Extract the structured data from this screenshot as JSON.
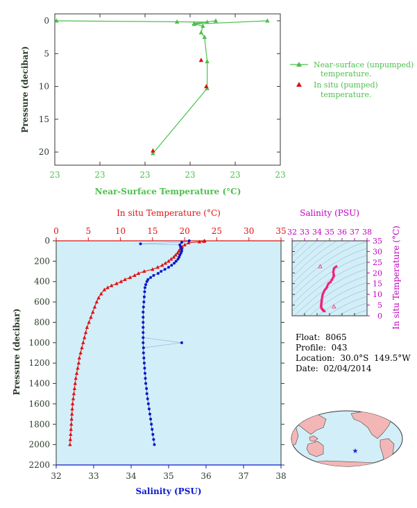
{
  "colors": {
    "nearsurface": "#4cbf4c",
    "insitu": "#dd1111",
    "salinity": "#0a18c8",
    "salinity_title": "#c000c0",
    "ts_points": "#ee2277",
    "axis_dark": "#2a3a2a",
    "panel_bg": "#d2eef8",
    "land": "#f3b6b6",
    "ocean": "#d2eef8"
  },
  "icons": {
    "float_marker": "star-icon"
  },
  "metadata": {
    "float": "Float:  8065",
    "profile": "Profile:  043",
    "location": "Location:  30.0°S  149.5°W",
    "date": "Date:  02/04/2014"
  },
  "chart_data": [
    {
      "type": "line",
      "name": "near-surface",
      "xlabel": "Near-Surface Temperature (°C)",
      "ylabel": "Pressure (decibar)",
      "x_tick_labels": [
        "23",
        "23",
        "23",
        "23",
        "23",
        "23"
      ],
      "y_tick_labels": [
        "0",
        "5",
        "10",
        "15",
        "20"
      ],
      "ylim": [
        0,
        22
      ],
      "y_reversed": true,
      "legend_placement": "right",
      "series": [
        {
          "name": "Near-surface (unpumped) temperature.",
          "marker": "triangle",
          "line": true,
          "points": [
            {
              "t": 22.96,
              "p": 0.0
            },
            {
              "t": 23.1,
              "p": 0.15
            },
            {
              "t": 23.135,
              "p": 0.2
            },
            {
              "t": 23.12,
              "p": 0.4
            },
            {
              "t": 23.12,
              "p": 0.5
            },
            {
              "t": 23.13,
              "p": 0.8
            },
            {
              "t": 23.128,
              "p": 1.8
            },
            {
              "t": 23.132,
              "p": 2.5
            },
            {
              "t": 23.135,
              "p": 6.2
            },
            {
              "t": 23.135,
              "p": 10.3
            },
            {
              "t": 23.072,
              "p": 20.2
            }
          ]
        },
        {
          "name": "Near-surface (unpumped) temperature.",
          "marker": "triangle",
          "line": true,
          "points": [
            {
              "t": 23.12,
              "p": 0.4
            },
            {
              "t": 23.145,
              "p": 0.0
            }
          ]
        },
        {
          "name": "Near-surface (unpumped) temperature.",
          "marker": "triangle",
          "line": true,
          "points": [
            {
              "t": 23.12,
              "p": 0.5
            },
            {
              "t": 23.205,
              "p": 0.0
            }
          ]
        },
        {
          "name": "In situ (pumped) temperature.",
          "marker": "triangle",
          "line": false,
          "points": [
            {
              "t": 23.128,
              "p": 6.0
            },
            {
              "t": 23.134,
              "p": 10.0
            },
            {
              "t": 23.072,
              "p": 19.8
            }
          ]
        }
      ]
    },
    {
      "type": "line",
      "name": "profile",
      "title_top": "In situ Temperature (°C)",
      "xlabel": "Salinity (PSU)",
      "ylabel": "Pressure (decibar)",
      "temp_xlim": [
        0,
        35
      ],
      "temp_ticks": [
        0,
        5,
        10,
        15,
        20,
        25,
        30,
        35
      ],
      "sal_xlim": [
        32,
        38
      ],
      "sal_ticks": [
        32,
        33,
        34,
        35,
        36,
        37,
        38
      ],
      "ylim": [
        0,
        2200
      ],
      "y_ticks": [
        0,
        200,
        400,
        600,
        800,
        1000,
        1200,
        1400,
        1600,
        1800,
        2000,
        2200
      ],
      "y_reversed": true,
      "temperature_series": {
        "name": "In situ Temperature",
        "points": [
          [
            23.1,
            0
          ],
          [
            23.0,
            5
          ],
          [
            22.3,
            10
          ],
          [
            20.6,
            20
          ],
          [
            20.0,
            40
          ],
          [
            19.6,
            60
          ],
          [
            19.3,
            80
          ],
          [
            19.1,
            100
          ],
          [
            18.9,
            120
          ],
          [
            18.6,
            140
          ],
          [
            18.3,
            160
          ],
          [
            17.9,
            180
          ],
          [
            17.5,
            200
          ],
          [
            17.0,
            220
          ],
          [
            16.5,
            240
          ],
          [
            15.8,
            260
          ],
          [
            15.0,
            280
          ],
          [
            13.7,
            300
          ],
          [
            12.8,
            320
          ],
          [
            12.2,
            340
          ],
          [
            11.5,
            360
          ],
          [
            10.7,
            380
          ],
          [
            10.1,
            400
          ],
          [
            9.4,
            420
          ],
          [
            8.6,
            440
          ],
          [
            8.0,
            460
          ],
          [
            7.5,
            480
          ],
          [
            7.0,
            520
          ],
          [
            6.6,
            560
          ],
          [
            6.3,
            600
          ],
          [
            6.0,
            650
          ],
          [
            5.7,
            700
          ],
          [
            5.4,
            750
          ],
          [
            5.1,
            800
          ],
          [
            4.8,
            850
          ],
          [
            4.6,
            900
          ],
          [
            4.4,
            950
          ],
          [
            4.2,
            1000
          ],
          [
            4.0,
            1050
          ],
          [
            3.8,
            1100
          ],
          [
            3.6,
            1150
          ],
          [
            3.5,
            1200
          ],
          [
            3.35,
            1250
          ],
          [
            3.2,
            1300
          ],
          [
            3.05,
            1350
          ],
          [
            2.95,
            1400
          ],
          [
            2.85,
            1450
          ],
          [
            2.75,
            1500
          ],
          [
            2.65,
            1550
          ],
          [
            2.55,
            1600
          ],
          [
            2.5,
            1650
          ],
          [
            2.45,
            1700
          ],
          [
            2.4,
            1750
          ],
          [
            2.35,
            1800
          ],
          [
            2.3,
            1850
          ],
          [
            2.25,
            1900
          ],
          [
            2.2,
            1950
          ],
          [
            2.15,
            2000
          ]
        ]
      },
      "salinity_series": {
        "name": "Salinity",
        "points": [
          [
            35.55,
            0
          ],
          [
            35.35,
            15
          ],
          [
            35.3,
            40
          ],
          [
            35.32,
            60
          ],
          [
            35.35,
            80
          ],
          [
            35.35,
            100
          ],
          [
            35.33,
            120
          ],
          [
            35.3,
            140
          ],
          [
            35.28,
            160
          ],
          [
            35.25,
            180
          ],
          [
            35.2,
            200
          ],
          [
            35.15,
            220
          ],
          [
            35.08,
            240
          ],
          [
            35.0,
            260
          ],
          [
            34.9,
            280
          ],
          [
            34.8,
            300
          ],
          [
            34.72,
            320
          ],
          [
            34.6,
            340
          ],
          [
            34.52,
            360
          ],
          [
            34.45,
            380
          ],
          [
            34.42,
            400
          ],
          [
            34.39,
            430
          ],
          [
            34.37,
            460
          ],
          [
            34.36,
            500
          ],
          [
            34.35,
            550
          ],
          [
            34.34,
            600
          ],
          [
            34.33,
            650
          ],
          [
            34.32,
            700
          ],
          [
            34.32,
            750
          ],
          [
            34.32,
            800
          ],
          [
            34.32,
            850
          ],
          [
            34.32,
            900
          ],
          [
            34.32,
            950
          ],
          [
            34.32,
            1000
          ],
          [
            34.33,
            1050
          ],
          [
            34.33,
            1100
          ],
          [
            34.34,
            1150
          ],
          [
            34.35,
            1200
          ],
          [
            34.36,
            1250
          ],
          [
            34.37,
            1300
          ],
          [
            34.38,
            1350
          ],
          [
            34.39,
            1400
          ],
          [
            34.41,
            1450
          ],
          [
            34.42,
            1500
          ],
          [
            34.44,
            1550
          ],
          [
            34.46,
            1600
          ],
          [
            34.48,
            1650
          ],
          [
            34.5,
            1700
          ],
          [
            34.52,
            1750
          ],
          [
            34.54,
            1800
          ],
          [
            34.56,
            1850
          ],
          [
            34.58,
            1900
          ],
          [
            34.6,
            1950
          ],
          [
            34.62,
            2000
          ]
        ],
        "outliers": [
          [
            34.25,
            30
          ],
          [
            35.35,
            1000
          ]
        ]
      }
    },
    {
      "type": "scatter",
      "name": "ts-diagram",
      "title_top": "Salinity (PSU)",
      "ylabel": "In situ Temperature (°C)",
      "xlim": [
        32,
        38
      ],
      "x_ticks": [
        32,
        33,
        34,
        35,
        36,
        37,
        38
      ],
      "ylim": [
        0,
        35
      ],
      "y_ticks": [
        0,
        5,
        10,
        15,
        20,
        25,
        30,
        35
      ],
      "points": [
        [
          35.55,
          23.1
        ],
        [
          35.35,
          22.2
        ],
        [
          35.3,
          20.6
        ],
        [
          35.32,
          19.6
        ],
        [
          35.35,
          19.1
        ],
        [
          35.33,
          18.6
        ],
        [
          35.28,
          17.9
        ],
        [
          35.2,
          17.0
        ],
        [
          35.08,
          15.8
        ],
        [
          34.9,
          15.0
        ],
        [
          34.8,
          13.7
        ],
        [
          34.72,
          12.8
        ],
        [
          34.6,
          12.0
        ],
        [
          34.52,
          11.0
        ],
        [
          34.45,
          10.1
        ],
        [
          34.42,
          9.2
        ],
        [
          34.39,
          8.2
        ],
        [
          34.37,
          7.4
        ],
        [
          34.36,
          6.8
        ],
        [
          34.35,
          6.3
        ],
        [
          34.34,
          5.8
        ],
        [
          34.33,
          5.3
        ],
        [
          34.32,
          4.8
        ],
        [
          34.33,
          4.3
        ],
        [
          34.35,
          3.9
        ],
        [
          34.38,
          3.5
        ],
        [
          34.42,
          3.2
        ],
        [
          34.46,
          2.9
        ],
        [
          34.5,
          2.6
        ],
        [
          34.55,
          2.4
        ],
        [
          34.6,
          2.2
        ]
      ],
      "outliers": [
        [
          34.25,
          23.0
        ],
        [
          35.35,
          4.2
        ]
      ]
    },
    {
      "type": "other",
      "name": "float-location-map",
      "marker": {
        "lon": -149.5,
        "lat": -30.0
      }
    }
  ]
}
